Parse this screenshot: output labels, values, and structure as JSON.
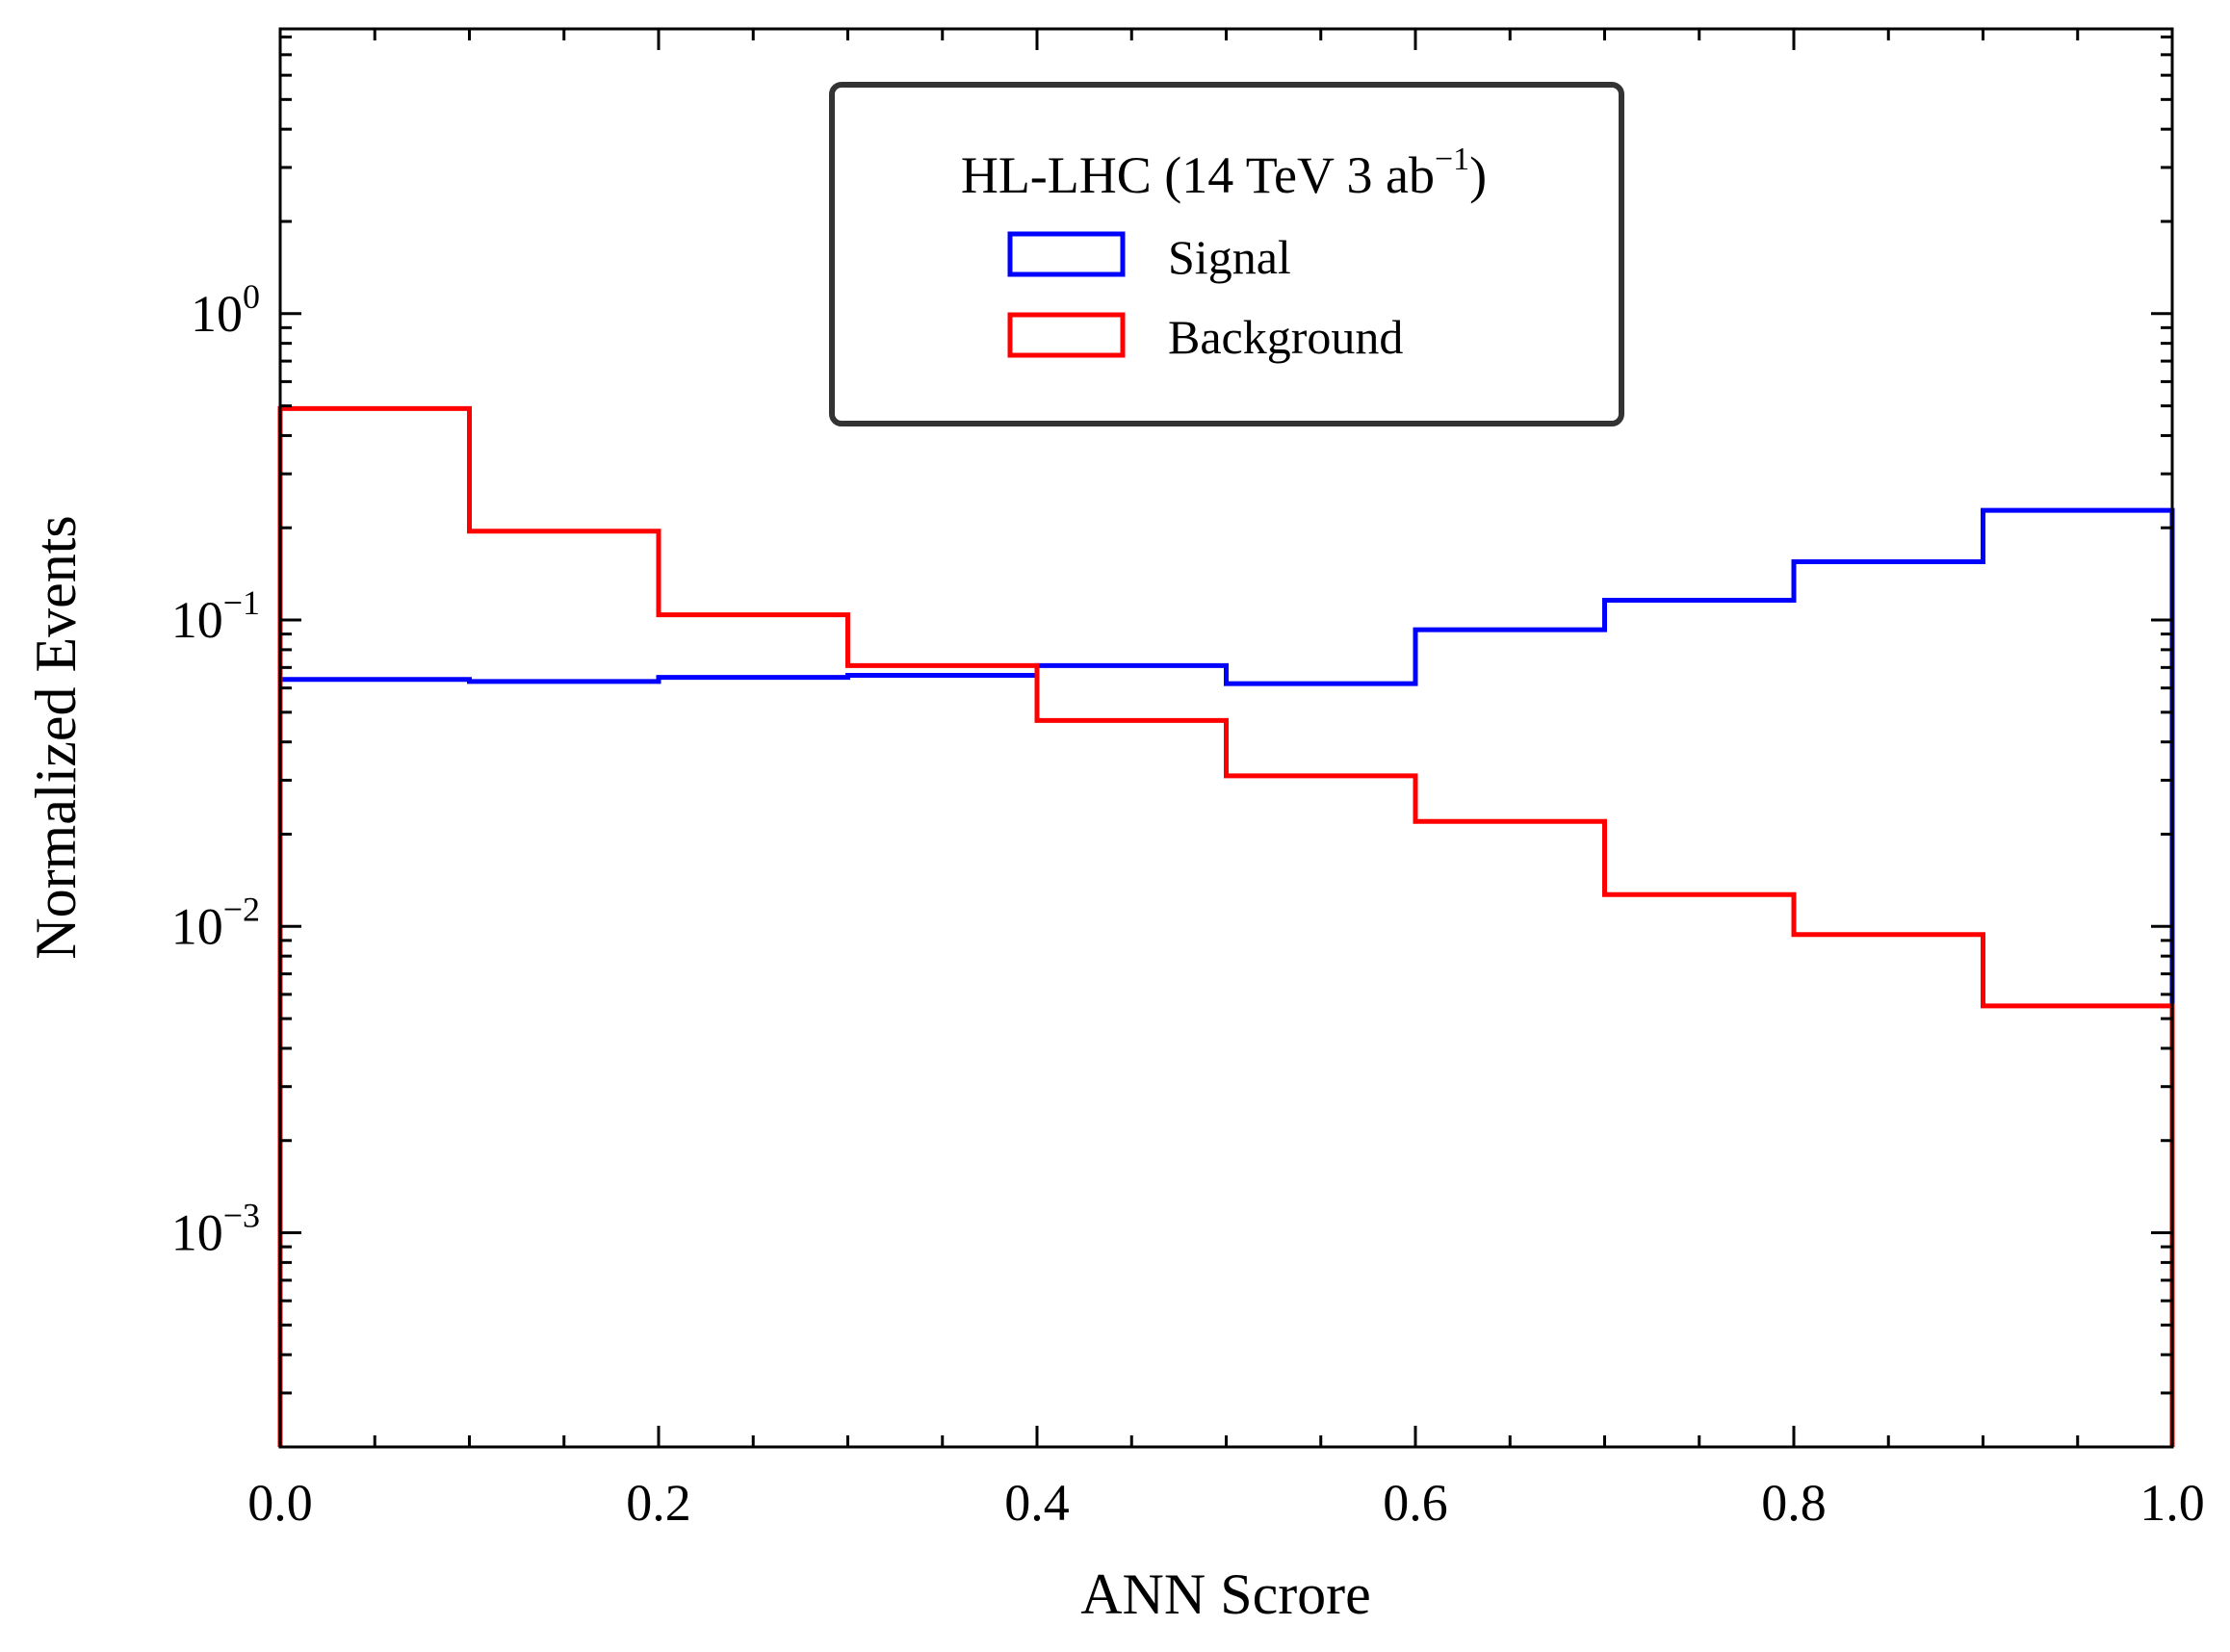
{
  "chart_data": {
    "type": "histogram",
    "xlabel": "ANN Scrore",
    "ylabel": "Normalized Events",
    "xlim": [
      0.0,
      1.0
    ],
    "ylim": [
      0.0002,
      8.5
    ],
    "yscale": "log",
    "x_ticks": [
      0.0,
      0.2,
      0.4,
      0.6,
      0.8,
      1.0
    ],
    "x_tick_labels": [
      "0.0",
      "0.2",
      "0.4",
      "0.6",
      "0.8",
      "1.0"
    ],
    "y_ticks": [
      {
        "value": 1,
        "base": "10",
        "exp": "0"
      },
      {
        "value": 0.1,
        "base": "10",
        "exp": "−1"
      },
      {
        "value": 0.01,
        "base": "10",
        "exp": "−2"
      },
      {
        "value": 0.001,
        "base": "10",
        "exp": "−3"
      }
    ],
    "bin_edges": [
      0.0,
      0.1,
      0.2,
      0.3,
      0.4,
      0.5,
      0.6,
      0.7,
      0.8,
      0.9,
      1.0
    ],
    "series": [
      {
        "name": "Signal",
        "color": "#0000ff",
        "values": [
          0.064,
          0.063,
          0.065,
          0.066,
          0.071,
          0.062,
          0.093,
          0.116,
          0.155,
          0.228
        ]
      },
      {
        "name": "Background",
        "color": "#ff0000",
        "values": [
          0.49,
          0.195,
          0.104,
          0.071,
          0.047,
          0.031,
          0.022,
          0.0127,
          0.0094,
          0.0055
        ]
      }
    ],
    "legend": {
      "title_main": "HL-LHC (14 TeV 3 ab",
      "title_sup": "−1",
      "title_close": ")",
      "position": "upper-center"
    }
  }
}
